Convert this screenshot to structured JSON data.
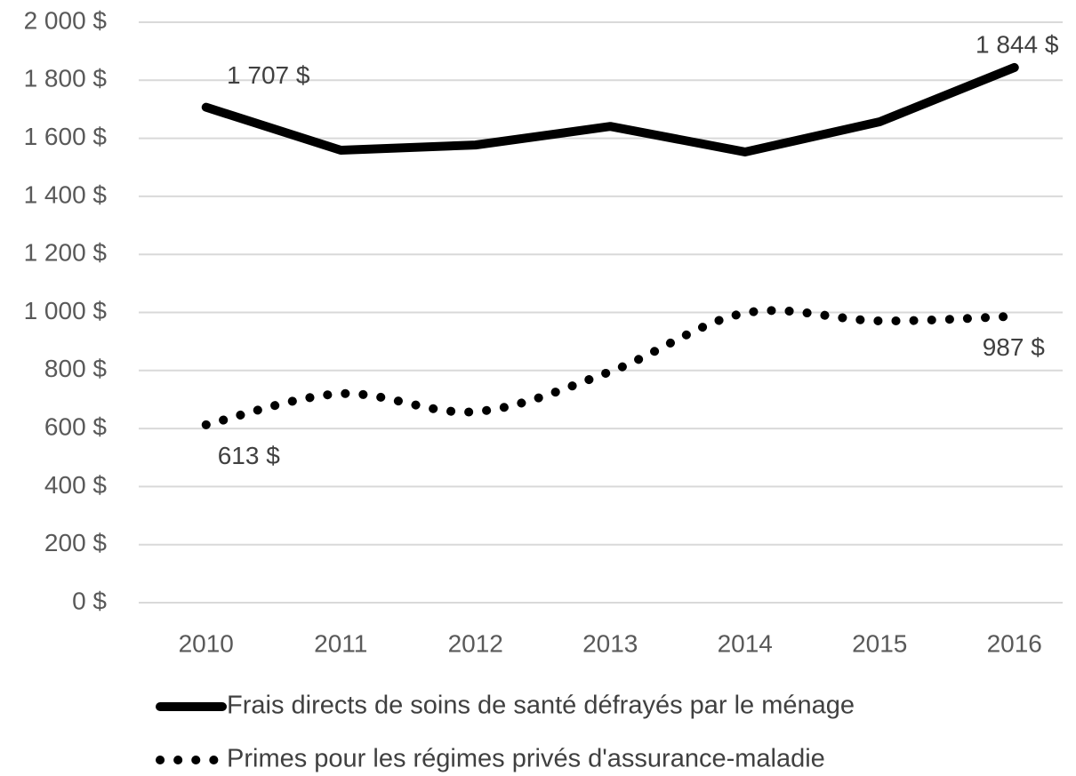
{
  "chart_data": {
    "type": "line",
    "categories": [
      "2010",
      "2011",
      "2012",
      "2013",
      "2014",
      "2015",
      "2016"
    ],
    "series": [
      {
        "name": "Frais directs de soins de santé défrayés par le ménage",
        "color": "#000000",
        "style": "solid",
        "smooth": false,
        "values": [
          1707,
          1559,
          1577,
          1641,
          1553,
          1657,
          1844
        ],
        "value_labels": [
          "1 707 $",
          null,
          null,
          null,
          null,
          null,
          "1 844 $"
        ]
      },
      {
        "name": "Primes pour les régimes privés d'assurance-maladie",
        "color": "#000000",
        "style": "dotted",
        "smooth": true,
        "values": [
          613,
          720,
          658,
          796,
          998,
          971,
          987
        ],
        "value_labels": [
          "613 $",
          null,
          null,
          null,
          null,
          null,
          "987 $"
        ]
      }
    ],
    "ylim": [
      0,
      2000
    ],
    "yticks": [
      {
        "value": 0,
        "label": "0 $"
      },
      {
        "value": 200,
        "label": "200 $"
      },
      {
        "value": 400,
        "label": "400 $"
      },
      {
        "value": 600,
        "label": "600 $"
      },
      {
        "value": 800,
        "label": "800 $"
      },
      {
        "value": 1000,
        "label": "1 000 $"
      },
      {
        "value": 1200,
        "label": "1 200 $"
      },
      {
        "value": 1400,
        "label": "1 400 $"
      },
      {
        "value": 1600,
        "label": "1 600 $"
      },
      {
        "value": 1800,
        "label": "1 800 $"
      },
      {
        "value": 2000,
        "label": "2 000 $"
      }
    ],
    "grid": true,
    "legend": "bottom"
  }
}
